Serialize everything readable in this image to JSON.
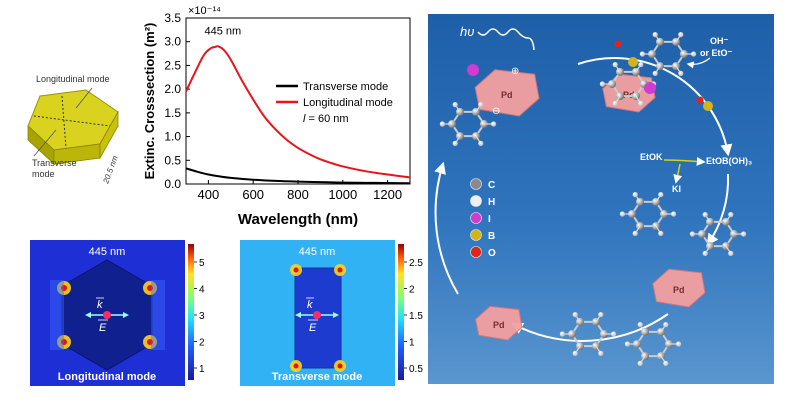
{
  "nanoplate_schematic": {
    "longitudinal_label": "Longitudinal mode",
    "transverse_label": "Transverse\nmode",
    "thickness_label": "20.5 nm"
  },
  "chart_data": {
    "type": "line",
    "xlabel": "Wavelength (nm)",
    "ylabel": "Extinc. Crosssection (m²)",
    "y_exponent": "×10⁻¹⁴",
    "xlim": [
      300,
      1300
    ],
    "ylim": [
      0,
      3.5
    ],
    "x_ticks": [
      400,
      600,
      800,
      1000,
      1200
    ],
    "y_ticks": [
      0.0,
      0.5,
      1.0,
      1.5,
      2.0,
      2.5,
      3.0,
      3.5
    ],
    "annotation": "445 nm",
    "legend": {
      "position": "center-right",
      "extra": "l = 60 nm"
    },
    "series": [
      {
        "name": "Transverse mode",
        "color": "#000000",
        "x": [
          300,
          350,
          400,
          450,
          500,
          600,
          700,
          800,
          900,
          1000,
          1100,
          1200,
          1300
        ],
        "y": [
          0.33,
          0.26,
          0.2,
          0.16,
          0.13,
          0.09,
          0.065,
          0.05,
          0.04,
          0.03,
          0.025,
          0.02,
          0.015
        ]
      },
      {
        "name": "Longitudinal mode",
        "color": "#e8141b",
        "x": [
          300,
          340,
          380,
          410,
          430,
          445,
          470,
          500,
          550,
          600,
          650,
          700,
          750,
          800,
          850,
          900,
          950,
          1000,
          1100,
          1200,
          1300
        ],
        "y": [
          1.95,
          2.35,
          2.72,
          2.86,
          2.89,
          2.9,
          2.82,
          2.62,
          2.18,
          1.78,
          1.42,
          1.15,
          0.93,
          0.76,
          0.63,
          0.52,
          0.44,
          0.37,
          0.27,
          0.2,
          0.14
        ]
      }
    ]
  },
  "field_maps": [
    {
      "wavelength": "445 nm",
      "mode": "Longitudinal mode",
      "k": "k",
      "e": "E",
      "colorbar_ticks": [
        "5",
        "4",
        "3",
        "2",
        "1"
      ]
    },
    {
      "wavelength": "445 nm",
      "mode": "Transverse mode",
      "k": "k",
      "e": "E",
      "colorbar_ticks": [
        "2.5",
        "2",
        "1.5",
        "1",
        "0.5"
      ]
    }
  ],
  "mechanism": {
    "hv": "hυ",
    "pd": "Pd",
    "base": "OH⁻\nor EtO⁻",
    "etok": "EtOK",
    "etob": "EtOB(OH)₃",
    "ki": "KI",
    "plus": "⊕",
    "minus": "⊖",
    "legend": [
      {
        "label": "C",
        "color": "#8a8a8a"
      },
      {
        "label": "H",
        "color": "#f0f0f0"
      },
      {
        "label": "I",
        "color": "#d23bd2"
      },
      {
        "label": "B",
        "color": "#d4b21a"
      },
      {
        "label": "O",
        "color": "#e0241c"
      }
    ]
  }
}
